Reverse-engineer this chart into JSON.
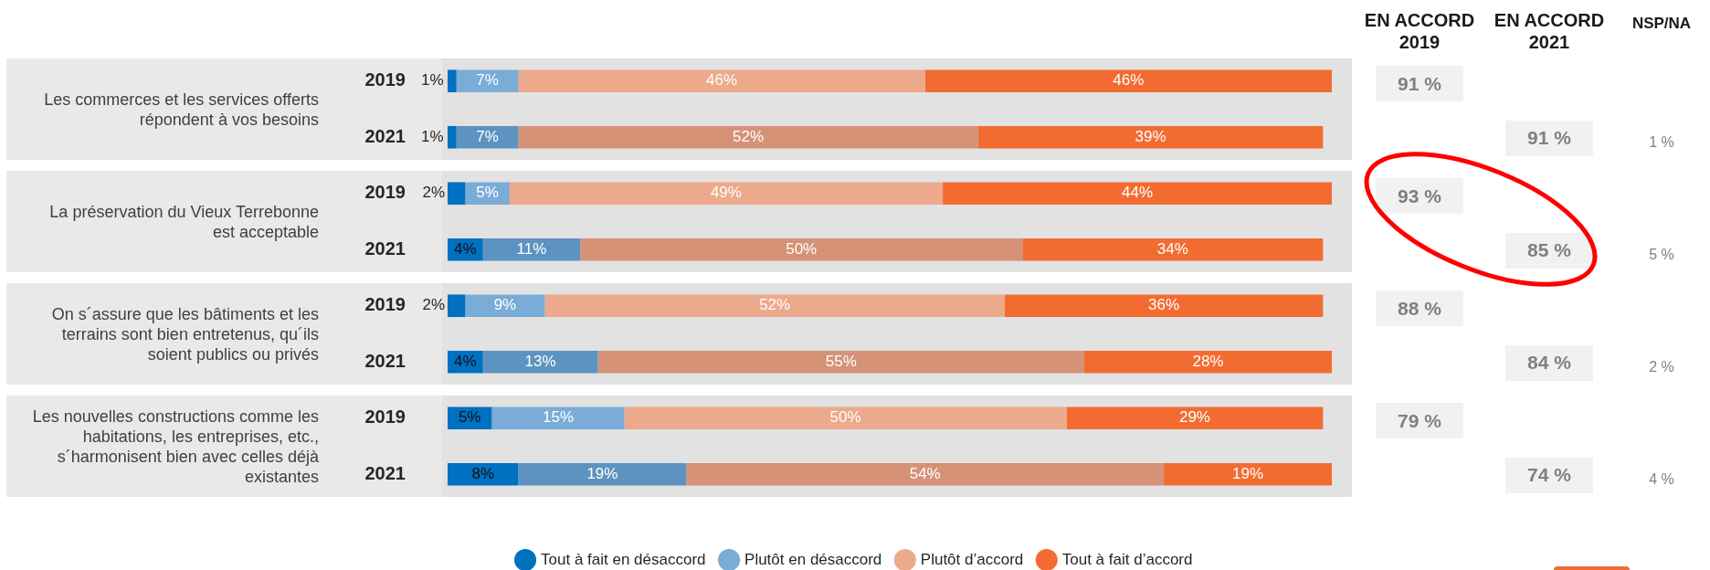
{
  "chart_data": [
    {
      "type": "bar",
      "orientation": "horizontal",
      "stacked": true,
      "categories": [
        "2019",
        "2021",
        "2019",
        "2021",
        "2019",
        "2021",
        "2019",
        "2021"
      ],
      "series": [
        {
          "name": "Tout à fait en désaccord",
          "color": "#0070c0",
          "values": [
            1,
            1,
            2,
            4,
            2,
            4,
            5,
            8
          ],
          "value_labels": [
            "1%",
            "1%",
            "2%",
            "4%",
            "2%",
            "4%",
            "5%",
            "8%"
          ]
        },
        {
          "name": "Plutôt en désaccord",
          "colors": [
            "#79acd6",
            "#5d93c0",
            "#79acd6",
            "#5d93c0",
            "#79acd6",
            "#5d93c0",
            "#79acd6",
            "#5d93c0"
          ],
          "values": [
            7,
            7,
            5,
            11,
            9,
            13,
            15,
            19
          ],
          "value_labels": [
            "7%",
            "7%",
            "5%",
            "11%",
            "9%",
            "13%",
            "15%",
            "19%"
          ]
        },
        {
          "name": "Plutôt d’accord",
          "colors": [
            "#eca98b",
            "#d59276",
            "#eca98b",
            "#d59276",
            "#eca98b",
            "#d59276",
            "#eca98b",
            "#d59276"
          ],
          "values": [
            46,
            52,
            49,
            50,
            52,
            55,
            50,
            54
          ],
          "value_labels": [
            "46%",
            "52%",
            "49%",
            "50%",
            "52%",
            "55%",
            "50%",
            "54%"
          ]
        },
        {
          "name": "Tout à fait d’accord",
          "color": "#f26c32",
          "values": [
            46,
            39,
            44,
            34,
            36,
            28,
            29,
            19
          ],
          "value_labels": [
            "46%",
            "39%",
            "44%",
            "34%",
            "36%",
            "28%",
            "29%",
            "19%"
          ]
        }
      ],
      "xlim": [
        0,
        100
      ],
      "tick_labels": "y",
      "legend": "bottom",
      "annotations": [
        "Les commerces et les services offerts répondent à vos besoins",
        "La préservation du Vieux Terrebonne est acceptable",
        "On s´assure que les bâtiments et les terrains sont bien entretenus, qu´ils soient publics ou privés",
        "Les nouvelles constructions comme les habitations, les entreprises, etc., s´harmonisent bien avec celles déjà existantes"
      ]
    },
    {
      "type": "other",
      "categories": [
        "EN ACCORD 2019",
        "EN ACCORD 2021",
        "NSP/NA"
      ],
      "annotations": [
        "91 %",
        "91 %",
        "1 %",
        "93 %",
        "85 %",
        "5 %",
        "88 %",
        "84 %",
        "2 %",
        "79 %",
        "74 %",
        "4 %"
      ]
    }
  ]
}
